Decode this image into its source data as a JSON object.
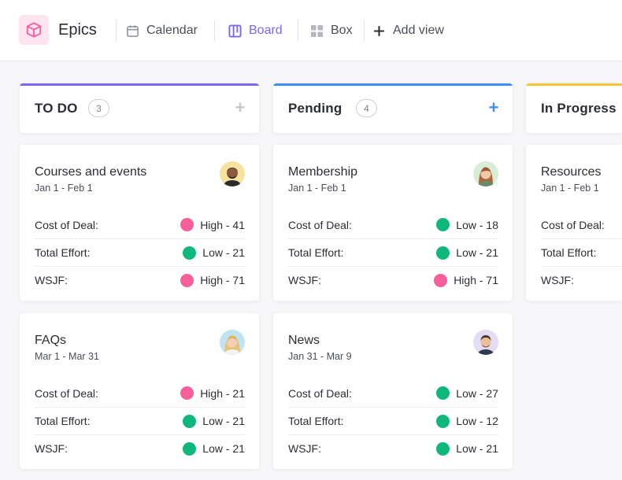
{
  "header": {
    "title": "Epics",
    "views": [
      {
        "label": "Calendar",
        "icon": "calendar-icon",
        "active": false
      },
      {
        "label": "Board",
        "icon": "board-icon",
        "active": true
      },
      {
        "label": "Box",
        "icon": "box-grid-icon",
        "active": false
      },
      {
        "label": "Add view",
        "icon": "plus-icon",
        "active": false
      }
    ]
  },
  "colors": {
    "accent": "#7b68ee",
    "high": "#f75e9a",
    "low": "#0fb87a",
    "todo": "#7b68ee",
    "pending": "#3f8ff2",
    "in_progress": "#f7c52d"
  },
  "columns": [
    {
      "name": "TO DO",
      "count": "3",
      "cards": [
        {
          "title": "Courses and events",
          "dates": "Jan 1 - Feb 1",
          "rows": [
            {
              "label": "Cost of Deal:",
              "value": "High - 41",
              "status": "high"
            },
            {
              "label": "Total Effort:",
              "value": "Low - 21",
              "status": "low"
            },
            {
              "label": "WSJF:",
              "value": "High - 71",
              "status": "high"
            }
          ]
        },
        {
          "title": "FAQs",
          "dates": "Mar 1 - Mar 31",
          "rows": [
            {
              "label": "Cost of Deal:",
              "value": "High - 21",
              "status": "high"
            },
            {
              "label": "Total Effort:",
              "value": "Low - 21",
              "status": "low"
            },
            {
              "label": "WSJF:",
              "value": "Low - 21",
              "status": "low"
            }
          ]
        }
      ]
    },
    {
      "name": "Pending",
      "count": "4",
      "cards": [
        {
          "title": "Membership",
          "dates": "Jan 1 - Feb 1",
          "rows": [
            {
              "label": "Cost of Deal:",
              "value": "Low - 18",
              "status": "low"
            },
            {
              "label": "Total Effort:",
              "value": "Low - 21",
              "status": "low"
            },
            {
              "label": "WSJF:",
              "value": "High - 71",
              "status": "high"
            }
          ]
        },
        {
          "title": "News",
          "dates": "Jan 31 - Mar 9",
          "rows": [
            {
              "label": "Cost of Deal:",
              "value": "Low - 27",
              "status": "low"
            },
            {
              "label": "Total Effort:",
              "value": "Low - 12",
              "status": "low"
            },
            {
              "label": "WSJF:",
              "value": "Low - 21",
              "status": "low"
            }
          ]
        }
      ]
    },
    {
      "name": "In Progress",
      "cards": [
        {
          "title": "Resources",
          "dates": "Jan 1 - Feb 1",
          "rows": [
            {
              "label": "Cost of Deal:"
            },
            {
              "label": "Total Effort:"
            },
            {
              "label": "WSJF:"
            }
          ]
        }
      ]
    }
  ]
}
